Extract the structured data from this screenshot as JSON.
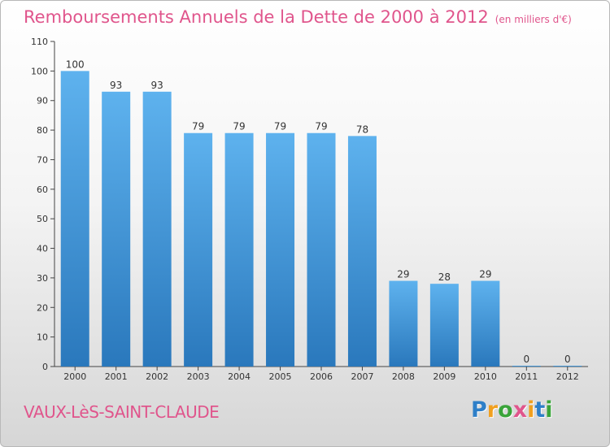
{
  "chart_data": {
    "type": "bar",
    "title": "Remboursements Annuels de la Dette de 2000 à 2012",
    "subtitle": "(en milliers d'€)",
    "categories": [
      "2000",
      "2001",
      "2002",
      "2003",
      "2004",
      "2005",
      "2006",
      "2007",
      "2008",
      "2009",
      "2010",
      "2011",
      "2012"
    ],
    "values": [
      100,
      93,
      93,
      79,
      79,
      79,
      79,
      78,
      29,
      28,
      29,
      0,
      0
    ],
    "data_labels": [
      "100",
      "93",
      "93",
      "79",
      "79",
      "79",
      "79",
      "78",
      "29",
      "28",
      "29",
      "0",
      "0"
    ],
    "yticks": [
      0,
      10,
      20,
      30,
      40,
      50,
      60,
      70,
      80,
      90,
      100,
      110
    ],
    "ylim": [
      0,
      110
    ],
    "xlabel": "",
    "ylabel": "",
    "grid": false,
    "legend": "none",
    "bar_color": "#3a8fd0"
  },
  "footer": {
    "commune": "VAUX-LèS-SAINT-CLAUDE",
    "brand_letters": [
      {
        "ch": "P",
        "color": "#2e7fc8"
      },
      {
        "ch": "r",
        "color": "#f0a020"
      },
      {
        "ch": "o",
        "color": "#3aa43a"
      },
      {
        "ch": "x",
        "color": "#e0558c"
      },
      {
        "ch": "i",
        "color": "#f0a020"
      },
      {
        "ch": "t",
        "color": "#2e7fc8"
      },
      {
        "ch": "i",
        "color": "#3aa43a"
      }
    ]
  }
}
